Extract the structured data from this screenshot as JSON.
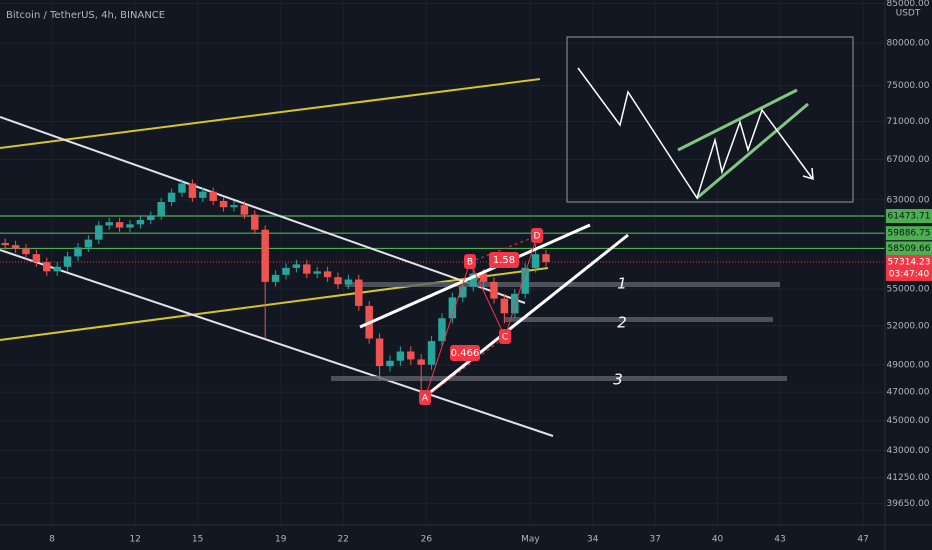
{
  "chart_data": {
    "type": "candlestick",
    "title": "Bitcoin / TetherUS, 4h, BINANCE",
    "y_unit": "USDT",
    "log_scale": true,
    "grid": true,
    "up_color": "#26a69a",
    "down_color": "#ef5350",
    "x": [
      5.75,
      6.25,
      6.75,
      7.25,
      7.75,
      8.25,
      8.75,
      9.25,
      9.75,
      10.25,
      10.75,
      11.25,
      11.75,
      12.25,
      12.75,
      13.25,
      13.75,
      14.25,
      14.75,
      15.25,
      15.75,
      16.25,
      16.75,
      17.25,
      17.75,
      18.25,
      18.75,
      19.25,
      19.75,
      20.25,
      20.75,
      21.25,
      21.75,
      22.25,
      22.75,
      23.25,
      23.75,
      24.25,
      24.75,
      25.25,
      25.75,
      26.25,
      26.75,
      27.25,
      27.75,
      28.25,
      28.75,
      29.25,
      29.75,
      30.25,
      30.75,
      31.25,
      31.75
    ],
    "open": [
      59000,
      58800,
      58500,
      58000,
      57300,
      56500,
      56900,
      57800,
      58600,
      59300,
      60600,
      60900,
      60400,
      60700,
      61100,
      61500,
      62800,
      63700,
      64600,
      63200,
      63800,
      62900,
      62300,
      62500,
      61600,
      60200,
      55600,
      56200,
      56800,
      57100,
      56300,
      56500,
      56000,
      55400,
      55800,
      53600,
      51000,
      48900,
      49300,
      50000,
      49400,
      49000,
      50800,
      52600,
      54300,
      55200,
      56300,
      55600,
      54200,
      53000,
      54600,
      56800,
      58000
    ],
    "high": [
      59400,
      59200,
      58900,
      58400,
      57700,
      57300,
      58200,
      59000,
      59700,
      61000,
      61300,
      61300,
      61100,
      61500,
      61900,
      63200,
      64100,
      65000,
      65000,
      64200,
      64200,
      63300,
      62900,
      62900,
      62000,
      60600,
      56600,
      57200,
      57500,
      57500,
      56900,
      56900,
      56400,
      56200,
      56200,
      54000,
      51400,
      49700,
      50400,
      50400,
      49800,
      51200,
      53000,
      54700,
      55600,
      56700,
      56700,
      56000,
      54600,
      55000,
      57200,
      58900,
      58400
    ],
    "low": [
      58400,
      58100,
      57600,
      56900,
      56100,
      56100,
      56500,
      57400,
      58200,
      58900,
      60200,
      60000,
      60000,
      60300,
      60700,
      61100,
      62400,
      63300,
      62800,
      62800,
      62500,
      61900,
      61900,
      61200,
      59800,
      51000,
      55200,
      55800,
      56400,
      55900,
      55900,
      55600,
      55000,
      55000,
      53200,
      50600,
      47800,
      48500,
      48900,
      49000,
      47000,
      48600,
      50400,
      52200,
      53900,
      54800,
      55200,
      53800,
      52200,
      52600,
      54200,
      56400,
      56900
    ],
    "close": [
      58800,
      58500,
      58000,
      57300,
      56500,
      56900,
      57800,
      58600,
      59300,
      60600,
      60900,
      60400,
      60700,
      61100,
      61500,
      62800,
      63700,
      64600,
      63200,
      63800,
      62900,
      62300,
      62500,
      61600,
      60200,
      55600,
      56200,
      56800,
      57100,
      56300,
      56500,
      56000,
      55400,
      55800,
      53600,
      51000,
      48900,
      49300,
      50000,
      49400,
      49000,
      50800,
      52600,
      54300,
      55200,
      56300,
      55600,
      54200,
      53000,
      54600,
      56800,
      58000,
      57300
    ],
    "xlim": [
      5.5,
      48.05
    ],
    "xticks": [
      8,
      12,
      15,
      19,
      22,
      26,
      {
        "value": 31,
        "label": "May"
      },
      34,
      37,
      40,
      43,
      47
    ],
    "ylim": [
      38380,
      85450
    ],
    "yticks": [
      {
        "value": 85000,
        "label": "85000.00"
      },
      {
        "value": 80000,
        "label": "80000.00"
      },
      {
        "value": 75000,
        "label": "75000.00"
      },
      {
        "value": 71000,
        "label": "71000.00"
      },
      {
        "value": 67000,
        "label": "67000.00"
      },
      {
        "value": 63000,
        "label": "63000.00"
      },
      {
        "value": 55000,
        "label": "55000.00"
      },
      {
        "value": 52000,
        "label": "52000.00"
      },
      {
        "value": 49000,
        "label": "49000.00"
      },
      {
        "value": 47000,
        "label": "47000.00"
      },
      {
        "value": 45000,
        "label": "45000.00"
      },
      {
        "value": 43000,
        "label": "43000.00"
      },
      {
        "value": 41250,
        "label": "41250.00"
      },
      {
        "value": 39650,
        "label": "39650.00"
      }
    ],
    "levels": [
      {
        "value": 61473.71,
        "color": "#4caf50"
      },
      {
        "value": 59886.75,
        "color": "#4caf50"
      },
      {
        "value": 58509.66,
        "color": "#4caf50"
      }
    ],
    "last_price": {
      "value": 57314.23,
      "color": "#f23645",
      "countdown": "03:47:40"
    },
    "point_labels": [
      "A",
      "B",
      "C",
      "D"
    ],
    "ratios": [
      1.58,
      0.466
    ],
    "zone_labels": [
      "1",
      "2",
      "3"
    ]
  }
}
